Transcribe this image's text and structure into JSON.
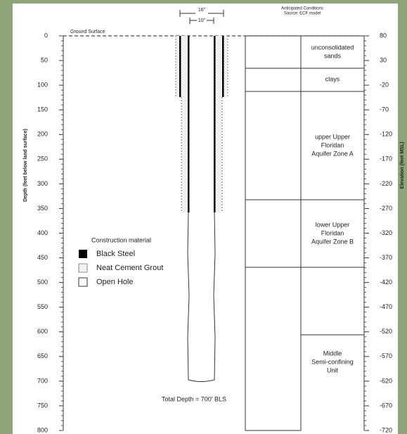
{
  "header": {
    "conditions_title": "Anticipated Conditions",
    "conditions_source": "Source: ECF model",
    "outer_diameter": "16\"",
    "inner_diameter": "10\""
  },
  "ground_surface": "Ground Surface",
  "total_depth": "Total Depth = 700' BLS",
  "depth_axis": {
    "title": "Depth (feet below land surface)",
    "ticks": [
      0,
      50,
      100,
      150,
      200,
      250,
      300,
      350,
      400,
      450,
      500,
      550,
      600,
      650,
      700,
      750,
      800
    ]
  },
  "elevation_axis": {
    "title": "Elevation (feet MSL)",
    "ticks": [
      80,
      30,
      -20,
      -70,
      -120,
      -170,
      -220,
      -270,
      -320,
      -370,
      -420,
      -470,
      -520,
      -570,
      -620,
      -670,
      -720
    ]
  },
  "legend": {
    "title": "Construction material",
    "items": [
      "Black Steel",
      "Neat Cement Grout",
      "Open Hole"
    ]
  },
  "layers": [
    {
      "lines": [
        "unconsolidated",
        "sands"
      ]
    },
    {
      "lines": [
        "clays"
      ]
    },
    {
      "lines": [
        "upper Upper",
        "Floridan",
        "Aquifer Zone A"
      ]
    },
    {
      "lines": [
        "lower Upper",
        "Floridan",
        "Aquifer Zone B"
      ]
    },
    {
      "lines": [
        "Middle",
        "Semi-confining",
        "Unit"
      ]
    }
  ]
}
